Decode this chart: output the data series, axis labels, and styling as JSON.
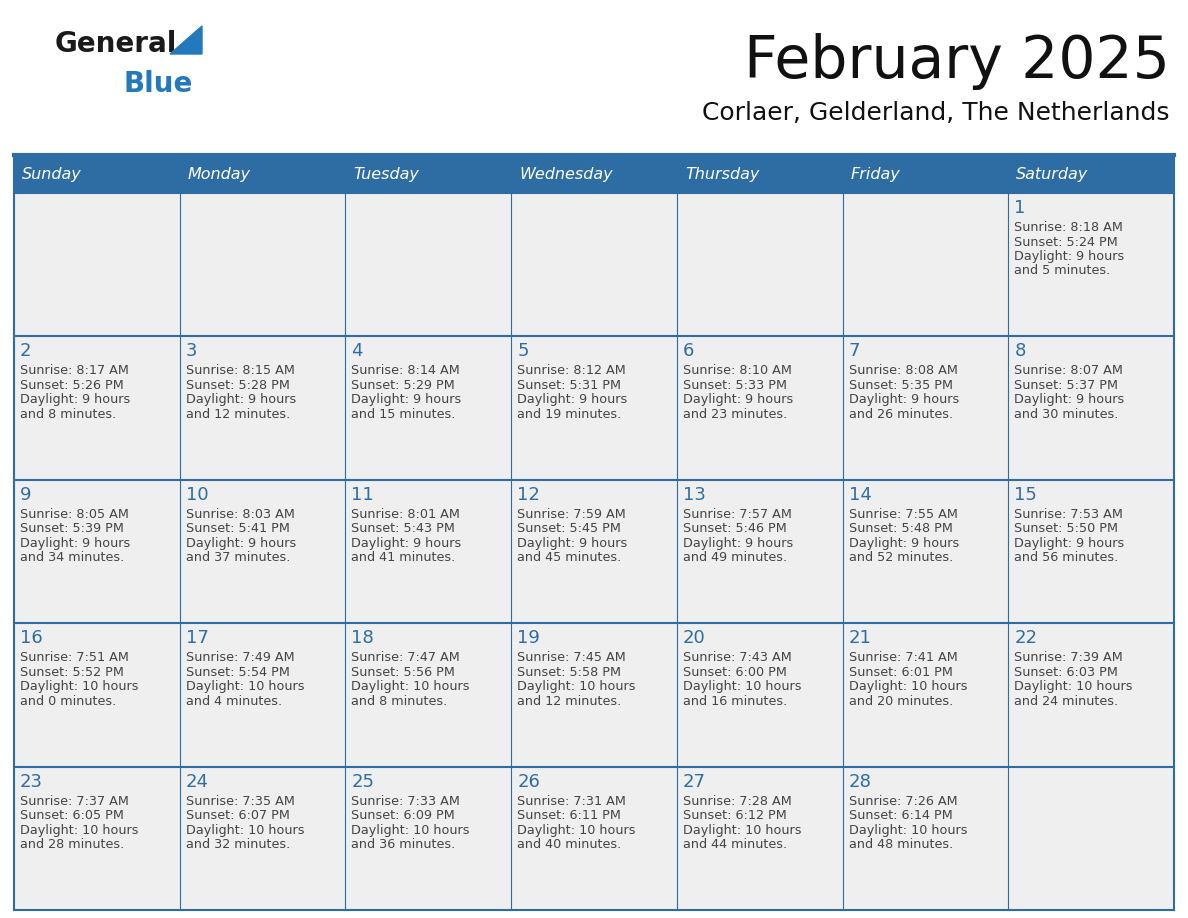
{
  "title": "February 2025",
  "subtitle": "Corlaer, Gelderland, The Netherlands",
  "days_of_week": [
    "Sunday",
    "Monday",
    "Tuesday",
    "Wednesday",
    "Thursday",
    "Friday",
    "Saturday"
  ],
  "header_bg": "#2e6da4",
  "header_text": "#ffffff",
  "cell_bg": "#efefef",
  "border_color": "#2e6da4",
  "day_num_color": "#2e6da4",
  "text_color": "#444444",
  "logo_general_color": "#1a1a1a",
  "logo_blue_color": "#2479bd",
  "weeks": [
    [
      null,
      null,
      null,
      null,
      null,
      null,
      1
    ],
    [
      2,
      3,
      4,
      5,
      6,
      7,
      8
    ],
    [
      9,
      10,
      11,
      12,
      13,
      14,
      15
    ],
    [
      16,
      17,
      18,
      19,
      20,
      21,
      22
    ],
    [
      23,
      24,
      25,
      26,
      27,
      28,
      null
    ]
  ],
  "day_data": {
    "1": {
      "sunrise": "8:18 AM",
      "sunset": "5:24 PM",
      "daylight_hours": 9,
      "daylight_minutes": 5
    },
    "2": {
      "sunrise": "8:17 AM",
      "sunset": "5:26 PM",
      "daylight_hours": 9,
      "daylight_minutes": 8
    },
    "3": {
      "sunrise": "8:15 AM",
      "sunset": "5:28 PM",
      "daylight_hours": 9,
      "daylight_minutes": 12
    },
    "4": {
      "sunrise": "8:14 AM",
      "sunset": "5:29 PM",
      "daylight_hours": 9,
      "daylight_minutes": 15
    },
    "5": {
      "sunrise": "8:12 AM",
      "sunset": "5:31 PM",
      "daylight_hours": 9,
      "daylight_minutes": 19
    },
    "6": {
      "sunrise": "8:10 AM",
      "sunset": "5:33 PM",
      "daylight_hours": 9,
      "daylight_minutes": 23
    },
    "7": {
      "sunrise": "8:08 AM",
      "sunset": "5:35 PM",
      "daylight_hours": 9,
      "daylight_minutes": 26
    },
    "8": {
      "sunrise": "8:07 AM",
      "sunset": "5:37 PM",
      "daylight_hours": 9,
      "daylight_minutes": 30
    },
    "9": {
      "sunrise": "8:05 AM",
      "sunset": "5:39 PM",
      "daylight_hours": 9,
      "daylight_minutes": 34
    },
    "10": {
      "sunrise": "8:03 AM",
      "sunset": "5:41 PM",
      "daylight_hours": 9,
      "daylight_minutes": 37
    },
    "11": {
      "sunrise": "8:01 AM",
      "sunset": "5:43 PM",
      "daylight_hours": 9,
      "daylight_minutes": 41
    },
    "12": {
      "sunrise": "7:59 AM",
      "sunset": "5:45 PM",
      "daylight_hours": 9,
      "daylight_minutes": 45
    },
    "13": {
      "sunrise": "7:57 AM",
      "sunset": "5:46 PM",
      "daylight_hours": 9,
      "daylight_minutes": 49
    },
    "14": {
      "sunrise": "7:55 AM",
      "sunset": "5:48 PM",
      "daylight_hours": 9,
      "daylight_minutes": 52
    },
    "15": {
      "sunrise": "7:53 AM",
      "sunset": "5:50 PM",
      "daylight_hours": 9,
      "daylight_minutes": 56
    },
    "16": {
      "sunrise": "7:51 AM",
      "sunset": "5:52 PM",
      "daylight_hours": 10,
      "daylight_minutes": 0
    },
    "17": {
      "sunrise": "7:49 AM",
      "sunset": "5:54 PM",
      "daylight_hours": 10,
      "daylight_minutes": 4
    },
    "18": {
      "sunrise": "7:47 AM",
      "sunset": "5:56 PM",
      "daylight_hours": 10,
      "daylight_minutes": 8
    },
    "19": {
      "sunrise": "7:45 AM",
      "sunset": "5:58 PM",
      "daylight_hours": 10,
      "daylight_minutes": 12
    },
    "20": {
      "sunrise": "7:43 AM",
      "sunset": "6:00 PM",
      "daylight_hours": 10,
      "daylight_minutes": 16
    },
    "21": {
      "sunrise": "7:41 AM",
      "sunset": "6:01 PM",
      "daylight_hours": 10,
      "daylight_minutes": 20
    },
    "22": {
      "sunrise": "7:39 AM",
      "sunset": "6:03 PM",
      "daylight_hours": 10,
      "daylight_minutes": 24
    },
    "23": {
      "sunrise": "7:37 AM",
      "sunset": "6:05 PM",
      "daylight_hours": 10,
      "daylight_minutes": 28
    },
    "24": {
      "sunrise": "7:35 AM",
      "sunset": "6:07 PM",
      "daylight_hours": 10,
      "daylight_minutes": 32
    },
    "25": {
      "sunrise": "7:33 AM",
      "sunset": "6:09 PM",
      "daylight_hours": 10,
      "daylight_minutes": 36
    },
    "26": {
      "sunrise": "7:31 AM",
      "sunset": "6:11 PM",
      "daylight_hours": 10,
      "daylight_minutes": 40
    },
    "27": {
      "sunrise": "7:28 AM",
      "sunset": "6:12 PM",
      "daylight_hours": 10,
      "daylight_minutes": 44
    },
    "28": {
      "sunrise": "7:26 AM",
      "sunset": "6:14 PM",
      "daylight_hours": 10,
      "daylight_minutes": 48
    }
  }
}
